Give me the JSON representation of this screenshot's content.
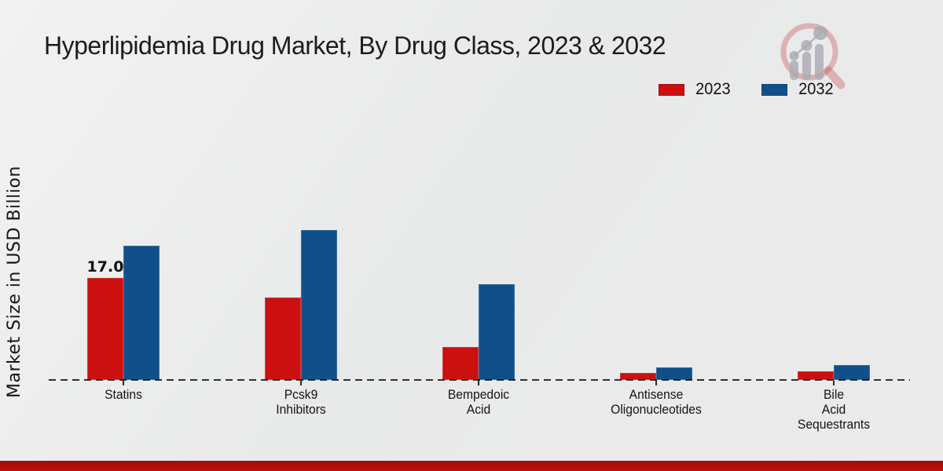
{
  "chart_data": {
    "type": "bar",
    "title": "Hyperlipidemia Drug Market, By Drug Class, 2023 & 2032",
    "ylabel": "Market Size in USD Billion",
    "xlabel": "",
    "categories": [
      "Statins",
      "Pcsk9\nInhibitors",
      "Bempedoic\nAcid",
      "Antisense\nOligonucleotides",
      "Bile\nAcid\nSequestrants"
    ],
    "series": [
      {
        "name": "2023",
        "color": "#cc0f0f",
        "values": [
          17.0,
          13.7,
          5.5,
          1.2,
          1.4
        ],
        "data_labels": [
          "17.0",
          "",
          "",
          "",
          ""
        ]
      },
      {
        "name": "2032",
        "color": "#114f8b",
        "values": [
          22.4,
          25.0,
          16.0,
          2.1,
          2.5
        ],
        "data_labels": [
          "",
          "",
          "",
          "",
          ""
        ]
      }
    ],
    "ylim": [
      0,
      26
    ],
    "grid": false,
    "legend_position": "top-right",
    "baseline_style": "dashed-zero-line",
    "y_axis_ticks_visible": false
  },
  "watermark": {
    "icon": "magnifier-bar-chart-logo",
    "lens_color": "rgba(196,88,88,0.38)",
    "bars_color": "rgba(168,170,176,0.8)"
  },
  "accent_band": {
    "gradient_top": "#9e0a0a",
    "gradient_bottom": "#c41010"
  }
}
